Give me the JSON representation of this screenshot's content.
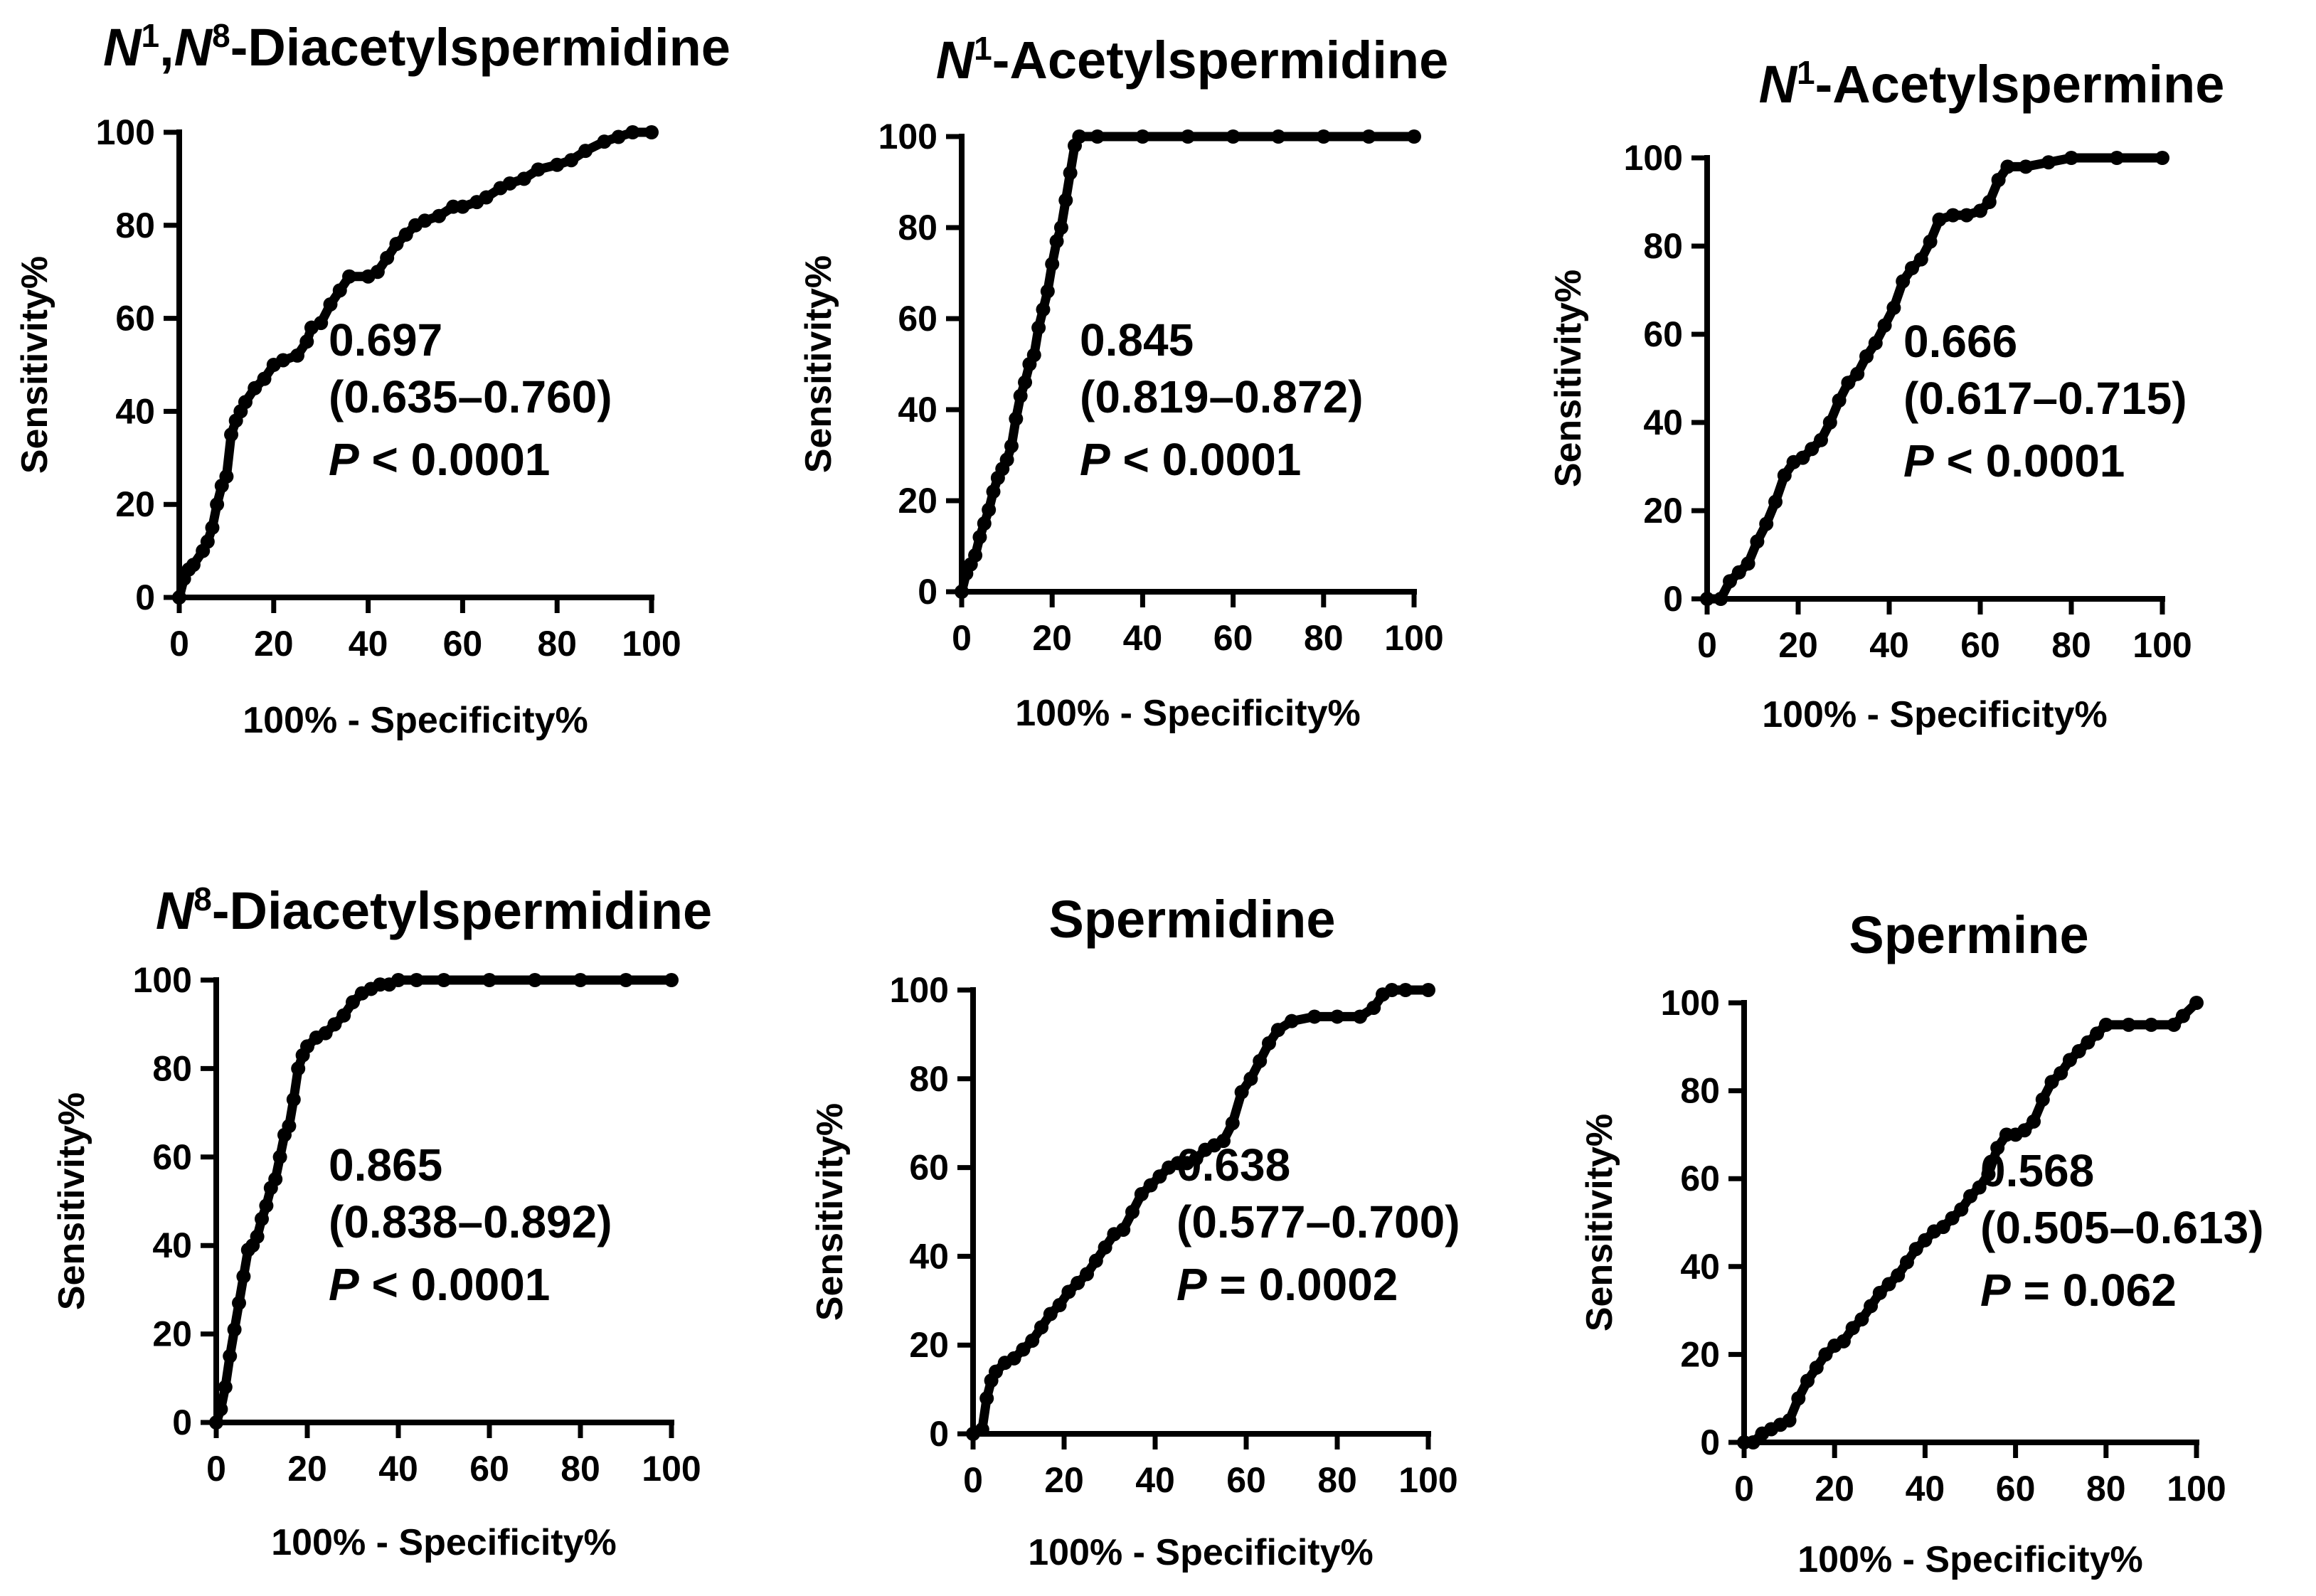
{
  "chart_data": [
    {
      "type": "line",
      "title_parts": [
        [
          "N",
          "it"
        ],
        [
          "1",
          "sup"
        ],
        [
          ",",
          ""
        ],
        [
          "N",
          "it"
        ],
        [
          "8",
          "sup"
        ],
        [
          "-Diacetylspermidine",
          ""
        ]
      ],
      "xlabel": "100% - Specificity%",
      "ylabel": "Sensitivity%",
      "xlim": [
        0,
        100
      ],
      "ylim": [
        0,
        100
      ],
      "xticks": [
        "0",
        "20",
        "40",
        "60",
        "80",
        "100"
      ],
      "yticks": [
        "0",
        "20",
        "40",
        "60",
        "80",
        "100"
      ],
      "auc": "0.697",
      "ci": "(0.635–0.760)",
      "p_label": "P",
      "p_value": "< 0.0001",
      "x": [
        0,
        1,
        2,
        3,
        5,
        6,
        7,
        8,
        9,
        10,
        11,
        12,
        13,
        14,
        16,
        18,
        20,
        22,
        25,
        27,
        28,
        30,
        32,
        34,
        36,
        40,
        42,
        44,
        46,
        48,
        50,
        52,
        55,
        58,
        60,
        63,
        65,
        68,
        70,
        73,
        76,
        80,
        83,
        86,
        90,
        93,
        96,
        100
      ],
      "y": [
        0,
        4,
        6,
        7,
        10,
        12,
        15,
        20,
        24,
        26,
        35,
        38,
        40,
        42,
        45,
        47,
        50,
        51,
        52,
        55,
        58,
        59,
        63,
        66,
        69,
        69,
        70,
        73,
        76,
        78,
        80,
        81,
        82,
        84,
        84,
        85,
        86,
        88,
        89,
        90,
        92,
        93,
        94,
        96,
        98,
        99,
        100,
        100
      ]
    },
    {
      "type": "line",
      "title_parts": [
        [
          "N",
          "it"
        ],
        [
          "1",
          "sup"
        ],
        [
          "-Acetylspermidine",
          ""
        ]
      ],
      "xlabel": "100% - Specificity%",
      "ylabel": "Sensitivity%",
      "xlim": [
        0,
        100
      ],
      "ylim": [
        0,
        100
      ],
      "xticks": [
        "0",
        "20",
        "40",
        "60",
        "80",
        "100"
      ],
      "yticks": [
        "0",
        "20",
        "40",
        "60",
        "80",
        "100"
      ],
      "auc": "0.845",
      "ci": "(0.819–0.872)",
      "p_label": "P",
      "p_value": "< 0.0001",
      "x": [
        0,
        1,
        2,
        3,
        4,
        5,
        6,
        7,
        8,
        9,
        10,
        11,
        12,
        13,
        14,
        15,
        16,
        17,
        18,
        19,
        20,
        21,
        22,
        23,
        24,
        25,
        26,
        30,
        40,
        50,
        60,
        70,
        80,
        90,
        100
      ],
      "y": [
        0,
        4,
        6,
        8,
        12,
        15,
        18,
        22,
        25,
        27,
        29,
        32,
        38,
        43,
        46,
        50,
        52,
        58,
        62,
        66,
        72,
        77,
        80,
        86,
        92,
        98,
        100,
        100,
        100,
        100,
        100,
        100,
        100,
        100,
        100
      ]
    },
    {
      "type": "line",
      "title_parts": [
        [
          "N",
          "it"
        ],
        [
          "1",
          "sup"
        ],
        [
          "-Acetylspermine",
          ""
        ]
      ],
      "xlabel": "100% - Specificity%",
      "ylabel": "Sensitivity%",
      "xlim": [
        0,
        100
      ],
      "ylim": [
        0,
        100
      ],
      "xticks": [
        "0",
        "20",
        "40",
        "60",
        "80",
        "100"
      ],
      "yticks": [
        "0",
        "20",
        "40",
        "60",
        "80",
        "100"
      ],
      "auc": "0.666",
      "ci": "(0.617–0.715)",
      "p_label": "P",
      "p_value": "< 0.0001",
      "x": [
        0,
        3,
        5,
        7,
        9,
        11,
        13,
        15,
        17,
        19,
        21,
        23,
        25,
        27,
        29,
        31,
        33,
        35,
        37,
        39,
        41,
        43,
        45,
        47,
        49,
        51,
        54,
        57,
        60,
        62,
        64,
        66,
        70,
        75,
        80,
        90,
        100
      ],
      "y": [
        0,
        0,
        4,
        6,
        8,
        13,
        17,
        22,
        28,
        31,
        32,
        34,
        36,
        40,
        45,
        49,
        51,
        55,
        58,
        62,
        66,
        72,
        75,
        77,
        81,
        86,
        87,
        87,
        88,
        90,
        95,
        98,
        98,
        99,
        100,
        100,
        100
      ]
    },
    {
      "type": "line",
      "title_parts": [
        [
          "N",
          "it"
        ],
        [
          "8",
          "sup"
        ],
        [
          "-Diacetylspermidine",
          ""
        ]
      ],
      "xlabel": "100% - Specificity%",
      "ylabel": "Sensitivity%",
      "xlim": [
        0,
        100
      ],
      "ylim": [
        0,
        100
      ],
      "xticks": [
        "0",
        "20",
        "40",
        "60",
        "80",
        "100"
      ],
      "yticks": [
        "0",
        "20",
        "40",
        "60",
        "80",
        "100"
      ],
      "auc": "0.865",
      "ci": "(0.838–0.892)",
      "p_label": "P",
      "p_value": "< 0.0001",
      "x": [
        0,
        1,
        2,
        3,
        4,
        5,
        6,
        7,
        8,
        9,
        10,
        11,
        12,
        13,
        14,
        15,
        16,
        17,
        18,
        19,
        20,
        22,
        24,
        26,
        28,
        30,
        32,
        34,
        36,
        38,
        40,
        44,
        50,
        60,
        70,
        80,
        90,
        100
      ],
      "y": [
        0,
        3,
        8,
        15,
        21,
        27,
        33,
        39,
        40,
        42,
        46,
        49,
        53,
        55,
        60,
        65,
        67,
        73,
        80,
        83,
        85,
        87,
        88,
        90,
        92,
        95,
        97,
        98,
        99,
        99,
        100,
        100,
        100,
        100,
        100,
        100,
        100,
        100
      ]
    },
    {
      "type": "line",
      "title_parts": [
        [
          "Spermidine",
          ""
        ]
      ],
      "xlabel": "100% - Specificity%",
      "ylabel": "Sensitivity%",
      "xlim": [
        0,
        100
      ],
      "ylim": [
        0,
        100
      ],
      "xticks": [
        "0",
        "20",
        "40",
        "60",
        "80",
        "100"
      ],
      "yticks": [
        "0",
        "20",
        "40",
        "60",
        "80",
        "100"
      ],
      "auc": "0.638",
      "ci": "(0.577–0.700)",
      "p_label": "P",
      "p_value": "= 0.0002",
      "x": [
        0,
        2,
        3,
        4,
        5,
        7,
        9,
        11,
        13,
        15,
        17,
        19,
        21,
        23,
        25,
        27,
        29,
        31,
        33,
        35,
        37,
        39,
        41,
        43,
        45,
        47,
        49,
        51,
        53,
        55,
        57,
        59,
        61,
        63,
        65,
        67,
        70,
        75,
        80,
        85,
        88,
        90,
        92,
        95,
        100
      ],
      "y": [
        0,
        1,
        8,
        12,
        14,
        16,
        17,
        19,
        21,
        24,
        27,
        29,
        32,
        34,
        36,
        39,
        42,
        45,
        46,
        50,
        54,
        56,
        58,
        60,
        61,
        61,
        62,
        64,
        65,
        66,
        70,
        77,
        80,
        84,
        88,
        91,
        93,
        94,
        94,
        94,
        96,
        99,
        100,
        100,
        100
      ]
    },
    {
      "type": "line",
      "title_parts": [
        [
          "Spermine",
          ""
        ]
      ],
      "xlabel": "100% - Specificity%",
      "ylabel": "Sensitivity%",
      "xlim": [
        0,
        100
      ],
      "ylim": [
        0,
        100
      ],
      "xticks": [
        "0",
        "20",
        "40",
        "60",
        "80",
        "100"
      ],
      "yticks": [
        "0",
        "20",
        "40",
        "60",
        "80",
        "100"
      ],
      "auc": "0.568",
      "ci": "(0.505–0.613)",
      "p_label": "P",
      "p_value": "= 0.062",
      "x": [
        0,
        2,
        4,
        6,
        8,
        10,
        12,
        14,
        16,
        18,
        20,
        22,
        24,
        26,
        28,
        30,
        32,
        34,
        36,
        38,
        40,
        42,
        44,
        46,
        48,
        50,
        52,
        54,
        56,
        58,
        60,
        62,
        64,
        66,
        68,
        70,
        72,
        74,
        76,
        78,
        80,
        85,
        90,
        95,
        97,
        100
      ],
      "y": [
        0,
        0,
        2,
        3,
        4,
        5,
        10,
        14,
        17,
        20,
        22,
        23,
        26,
        28,
        31,
        34,
        36,
        38,
        41,
        44,
        46,
        48,
        49,
        51,
        53,
        56,
        58,
        61,
        67,
        70,
        70,
        71,
        73,
        78,
        82,
        84,
        87,
        89,
        91,
        93,
        95,
        95,
        95,
        95,
        97,
        100
      ]
    }
  ]
}
